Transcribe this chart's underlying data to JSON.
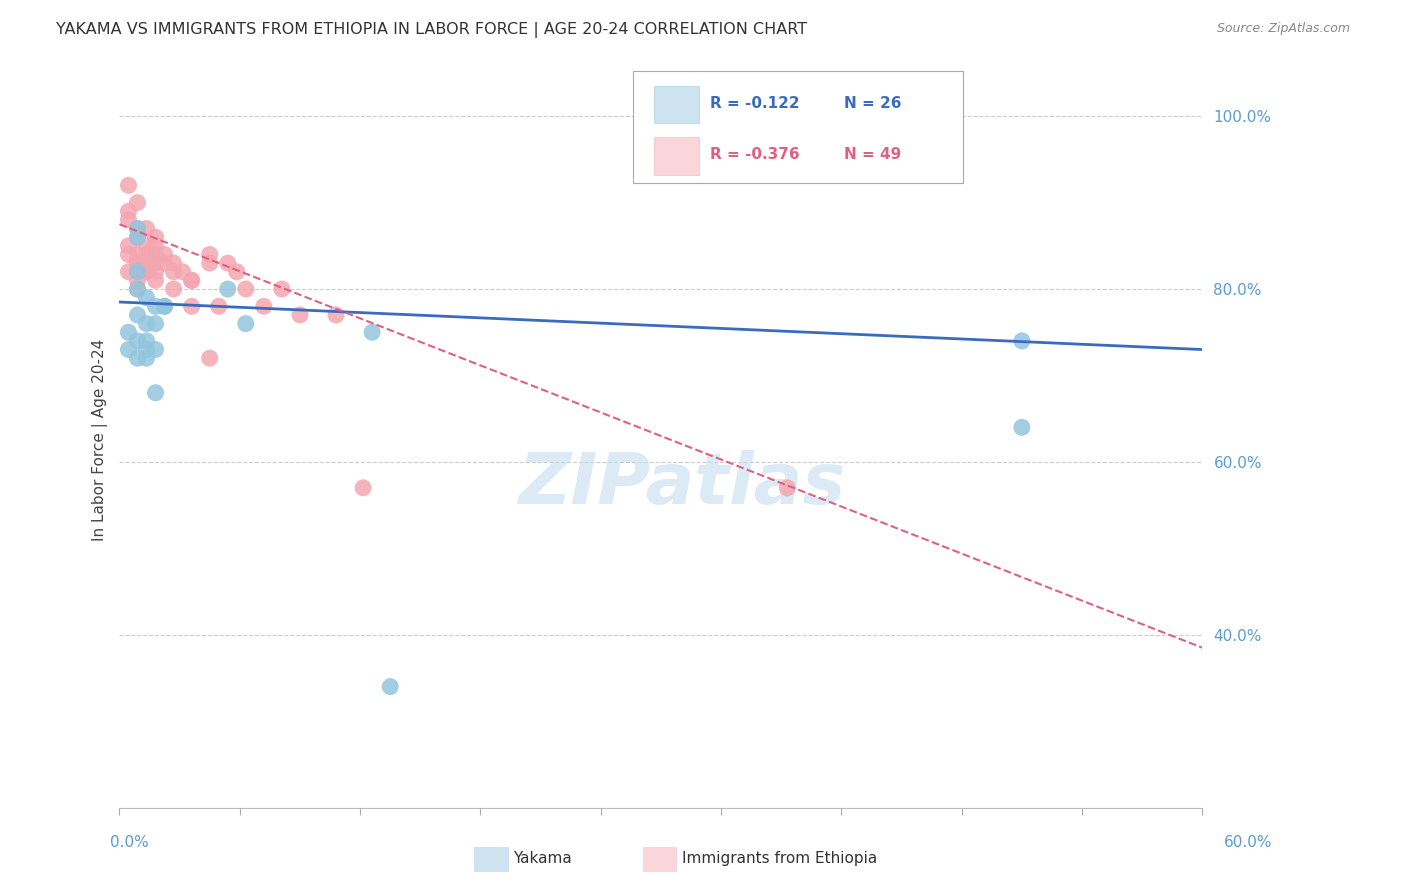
{
  "title": "YAKAMA VS IMMIGRANTS FROM ETHIOPIA IN LABOR FORCE | AGE 20-24 CORRELATION CHART",
  "source": "Source: ZipAtlas.com",
  "ylabel": "In Labor Force | Age 20-24",
  "y_ticks": [
    40,
    60,
    80,
    100
  ],
  "x_min": 0.0,
  "x_max": 0.6,
  "y_min": 0.2,
  "y_max": 1.05,
  "yakama_color": "#92c5de",
  "ethiopia_color": "#f4a6b0",
  "trend_yakama_color": "#3a6bbf",
  "trend_ethiopia_color": "#e06080",
  "legend_R_yakama": "-0.122",
  "legend_N_yakama": "26",
  "legend_R_ethiopia": "-0.376",
  "legend_N_ethiopia": "49",
  "watermark_color": "#c8dff0",
  "yakama_x": [
    0.005,
    0.005,
    0.01,
    0.01,
    0.01,
    0.01,
    0.01,
    0.01,
    0.01,
    0.015,
    0.015,
    0.015,
    0.015,
    0.015,
    0.02,
    0.02,
    0.02,
    0.02,
    0.025,
    0.025,
    0.06,
    0.07,
    0.14,
    0.15,
    0.5,
    0.5
  ],
  "yakama_y": [
    0.75,
    0.73,
    0.87,
    0.86,
    0.82,
    0.8,
    0.77,
    0.74,
    0.72,
    0.79,
    0.76,
    0.74,
    0.73,
    0.72,
    0.78,
    0.76,
    0.73,
    0.68,
    0.78,
    0.78,
    0.8,
    0.76,
    0.75,
    0.34,
    0.74,
    0.64
  ],
  "ethiopia_x": [
    0.005,
    0.005,
    0.005,
    0.005,
    0.005,
    0.005,
    0.01,
    0.01,
    0.01,
    0.01,
    0.01,
    0.01,
    0.01,
    0.01,
    0.01,
    0.015,
    0.015,
    0.015,
    0.015,
    0.015,
    0.015,
    0.02,
    0.02,
    0.02,
    0.02,
    0.02,
    0.02,
    0.025,
    0.025,
    0.03,
    0.03,
    0.03,
    0.035,
    0.04,
    0.04,
    0.04,
    0.05,
    0.05,
    0.05,
    0.055,
    0.06,
    0.065,
    0.07,
    0.08,
    0.09,
    0.1,
    0.12,
    0.135,
    0.37
  ],
  "ethiopia_y": [
    0.92,
    0.89,
    0.88,
    0.85,
    0.84,
    0.82,
    0.9,
    0.87,
    0.86,
    0.84,
    0.83,
    0.83,
    0.82,
    0.81,
    0.8,
    0.87,
    0.85,
    0.84,
    0.83,
    0.82,
    0.82,
    0.86,
    0.85,
    0.84,
    0.83,
    0.82,
    0.81,
    0.84,
    0.83,
    0.83,
    0.82,
    0.8,
    0.82,
    0.81,
    0.81,
    0.78,
    0.84,
    0.83,
    0.72,
    0.78,
    0.83,
    0.82,
    0.8,
    0.78,
    0.8,
    0.77,
    0.77,
    0.57,
    0.57
  ],
  "trend_yakama_x0": 0.0,
  "trend_yakama_x1": 0.6,
  "trend_yakama_y0": 0.785,
  "trend_yakama_y1": 0.73,
  "trend_ethiopia_x0": 0.0,
  "trend_ethiopia_x1": 0.6,
  "trend_ethiopia_y0": 0.875,
  "trend_ethiopia_y1": 0.385
}
